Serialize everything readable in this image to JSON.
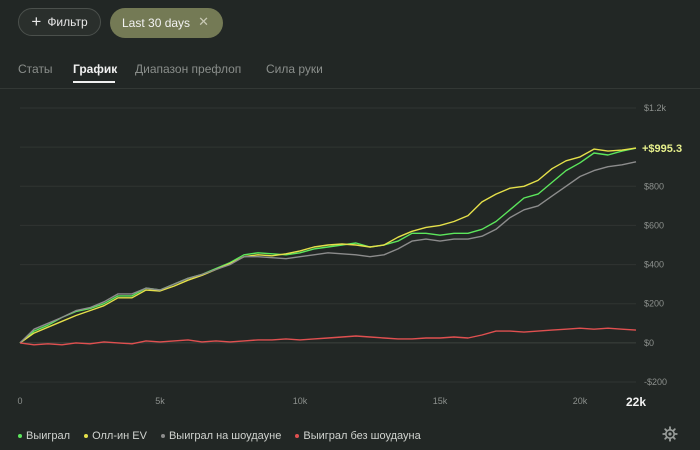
{
  "toolbar": {
    "filter_label": "Фильтр",
    "date_chip_label": "Last 30 days"
  },
  "tabs": [
    {
      "label": "Статы",
      "active": false
    },
    {
      "label": "График",
      "active": true
    },
    {
      "label": "Диапазон префлоп",
      "active": false
    },
    {
      "label": "Сила руки",
      "active": false
    }
  ],
  "colors": {
    "accent_chip": "#747a55",
    "won": "#5ce65c",
    "allin_ev": "#e5e04a",
    "showdown": "#8c8c8c",
    "non_showdown": "#e05050"
  },
  "chart_data": {
    "type": "line",
    "x": {
      "min": 0,
      "max": 22000,
      "ticks": [
        {
          "v": 0,
          "label": "0"
        },
        {
          "v": 5000,
          "label": "5k"
        },
        {
          "v": 10000,
          "label": "10k"
        },
        {
          "v": 15000,
          "label": "15k"
        },
        {
          "v": 20000,
          "label": "20k"
        }
      ],
      "last_label": "22k"
    },
    "y": {
      "min": -200,
      "max": 1200,
      "position": "right",
      "ticks": [
        {
          "v": 1200,
          "label": "$1.2k"
        },
        {
          "v": 1000,
          "label": ""
        },
        {
          "v": 800,
          "label": "$800"
        },
        {
          "v": 600,
          "label": "$600"
        },
        {
          "v": 400,
          "label": "$400"
        },
        {
          "v": 200,
          "label": "$200"
        },
        {
          "v": 0,
          "label": "$0"
        },
        {
          "v": -200,
          "label": "-$200"
        }
      ]
    },
    "grid": true,
    "end_label": "+$995.3",
    "series": [
      {
        "key": "won",
        "name": "Выиграл",
        "color": "#5ce65c",
        "points": [
          [
            0,
            0
          ],
          [
            500,
            60
          ],
          [
            1000,
            90
          ],
          [
            1500,
            130
          ],
          [
            2000,
            160
          ],
          [
            2500,
            175
          ],
          [
            3000,
            200
          ],
          [
            3500,
            240
          ],
          [
            4000,
            240
          ],
          [
            4500,
            280
          ],
          [
            5000,
            270
          ],
          [
            5500,
            300
          ],
          [
            6000,
            330
          ],
          [
            6500,
            350
          ],
          [
            7000,
            380
          ],
          [
            7500,
            410
          ],
          [
            8000,
            450
          ],
          [
            8500,
            460
          ],
          [
            9000,
            455
          ],
          [
            9500,
            450
          ],
          [
            10000,
            460
          ],
          [
            10500,
            480
          ],
          [
            11000,
            490
          ],
          [
            11500,
            500
          ],
          [
            12000,
            510
          ],
          [
            12500,
            490
          ],
          [
            13000,
            500
          ],
          [
            13500,
            520
          ],
          [
            14000,
            560
          ],
          [
            14500,
            560
          ],
          [
            15000,
            550
          ],
          [
            15500,
            560
          ],
          [
            16000,
            560
          ],
          [
            16500,
            580
          ],
          [
            17000,
            620
          ],
          [
            17500,
            680
          ],
          [
            18000,
            740
          ],
          [
            18500,
            760
          ],
          [
            19000,
            820
          ],
          [
            19500,
            880
          ],
          [
            20000,
            920
          ],
          [
            20500,
            970
          ],
          [
            21000,
            960
          ],
          [
            21500,
            980
          ],
          [
            22000,
            995.3
          ]
        ]
      },
      {
        "key": "allin_ev",
        "name": "Олл-ин EV",
        "color": "#e5e04a",
        "points": [
          [
            0,
            0
          ],
          [
            500,
            50
          ],
          [
            1000,
            80
          ],
          [
            1500,
            110
          ],
          [
            2000,
            140
          ],
          [
            2500,
            165
          ],
          [
            3000,
            190
          ],
          [
            3500,
            230
          ],
          [
            4000,
            230
          ],
          [
            4500,
            270
          ],
          [
            5000,
            265
          ],
          [
            5500,
            290
          ],
          [
            6000,
            320
          ],
          [
            6500,
            345
          ],
          [
            7000,
            375
          ],
          [
            7500,
            405
          ],
          [
            8000,
            440
          ],
          [
            8500,
            450
          ],
          [
            9000,
            445
          ],
          [
            9500,
            455
          ],
          [
            10000,
            470
          ],
          [
            10500,
            490
          ],
          [
            11000,
            500
          ],
          [
            11500,
            505
          ],
          [
            12000,
            500
          ],
          [
            12500,
            490
          ],
          [
            13000,
            500
          ],
          [
            13500,
            540
          ],
          [
            14000,
            570
          ],
          [
            14500,
            590
          ],
          [
            15000,
            600
          ],
          [
            15500,
            620
          ],
          [
            16000,
            650
          ],
          [
            16500,
            720
          ],
          [
            17000,
            760
          ],
          [
            17500,
            790
          ],
          [
            18000,
            800
          ],
          [
            18500,
            830
          ],
          [
            19000,
            890
          ],
          [
            19500,
            930
          ],
          [
            20000,
            950
          ],
          [
            20500,
            990
          ],
          [
            21000,
            980
          ],
          [
            21500,
            985
          ],
          [
            22000,
            995
          ]
        ]
      },
      {
        "key": "showdown",
        "name": "Выиграл на шоудауне",
        "color": "#8c8c8c",
        "points": [
          [
            0,
            0
          ],
          [
            500,
            70
          ],
          [
            1000,
            100
          ],
          [
            1500,
            130
          ],
          [
            2000,
            165
          ],
          [
            2500,
            180
          ],
          [
            3000,
            210
          ],
          [
            3500,
            250
          ],
          [
            4000,
            250
          ],
          [
            4500,
            280
          ],
          [
            5000,
            270
          ],
          [
            5500,
            300
          ],
          [
            6000,
            330
          ],
          [
            6500,
            350
          ],
          [
            7000,
            375
          ],
          [
            7500,
            400
          ],
          [
            8000,
            440
          ],
          [
            8500,
            440
          ],
          [
            9000,
            435
          ],
          [
            9500,
            430
          ],
          [
            10000,
            440
          ],
          [
            10500,
            450
          ],
          [
            11000,
            460
          ],
          [
            11500,
            455
          ],
          [
            12000,
            450
          ],
          [
            12500,
            440
          ],
          [
            13000,
            450
          ],
          [
            13500,
            480
          ],
          [
            14000,
            520
          ],
          [
            14500,
            530
          ],
          [
            15000,
            520
          ],
          [
            15500,
            530
          ],
          [
            16000,
            530
          ],
          [
            16500,
            545
          ],
          [
            17000,
            580
          ],
          [
            17500,
            640
          ],
          [
            18000,
            680
          ],
          [
            18500,
            700
          ],
          [
            19000,
            750
          ],
          [
            19500,
            800
          ],
          [
            20000,
            850
          ],
          [
            20500,
            880
          ],
          [
            21000,
            900
          ],
          [
            21500,
            910
          ],
          [
            22000,
            925
          ]
        ]
      },
      {
        "key": "non_showdown",
        "name": "Выиграл без шоудауна",
        "color": "#e05050",
        "points": [
          [
            0,
            0
          ],
          [
            500,
            -10
          ],
          [
            1000,
            -5
          ],
          [
            1500,
            -10
          ],
          [
            2000,
            0
          ],
          [
            2500,
            -5
          ],
          [
            3000,
            5
          ],
          [
            3500,
            0
          ],
          [
            4000,
            -5
          ],
          [
            4500,
            10
          ],
          [
            5000,
            5
          ],
          [
            5500,
            10
          ],
          [
            6000,
            15
          ],
          [
            6500,
            5
          ],
          [
            7000,
            10
          ],
          [
            7500,
            5
          ],
          [
            8000,
            10
          ],
          [
            8500,
            15
          ],
          [
            9000,
            15
          ],
          [
            9500,
            20
          ],
          [
            10000,
            15
          ],
          [
            10500,
            20
          ],
          [
            11000,
            25
          ],
          [
            11500,
            30
          ],
          [
            12000,
            35
          ],
          [
            12500,
            30
          ],
          [
            13000,
            25
          ],
          [
            13500,
            20
          ],
          [
            14000,
            20
          ],
          [
            14500,
            25
          ],
          [
            15000,
            25
          ],
          [
            15500,
            30
          ],
          [
            16000,
            25
          ],
          [
            16500,
            40
          ],
          [
            17000,
            60
          ],
          [
            17500,
            60
          ],
          [
            18000,
            55
          ],
          [
            18500,
            60
          ],
          [
            19000,
            65
          ],
          [
            19500,
            70
          ],
          [
            20000,
            75
          ],
          [
            20500,
            70
          ],
          [
            21000,
            75
          ],
          [
            21500,
            70
          ],
          [
            22000,
            65
          ]
        ]
      }
    ]
  },
  "legend": [
    {
      "label": "Выиграл",
      "color": "#5ce65c"
    },
    {
      "label": "Олл-ин EV",
      "color": "#e5e04a"
    },
    {
      "label": "Выиграл на шоудауне",
      "color": "#8c8c8c"
    },
    {
      "label": "Выиграл без шоудауна",
      "color": "#e05050"
    }
  ],
  "settings_icon": "gear-icon"
}
